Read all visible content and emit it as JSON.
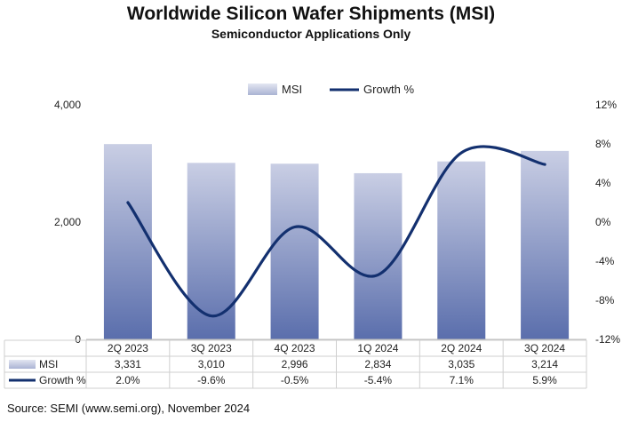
{
  "title": "Worldwide Silicon Wafer Shipments (MSI)",
  "subtitle": "Semiconductor Applications Only",
  "source": "Source: SEMI (www.semi.org), November 2024",
  "chart_data": {
    "type": "bar",
    "categories": [
      "2Q 2023",
      "3Q 2023",
      "4Q 2023",
      "1Q 2024",
      "2Q 2024",
      "3Q 2024"
    ],
    "series": [
      {
        "name": "MSI",
        "type": "bar",
        "axis": "left",
        "values": [
          3331,
          3010,
          2996,
          2834,
          3035,
          3214
        ],
        "labels": [
          "3,331",
          "3,010",
          "2,996",
          "2,834",
          "3,035",
          "3,214"
        ]
      },
      {
        "name": "Growth %",
        "type": "line",
        "axis": "right",
        "values": [
          2.0,
          -9.6,
          -0.5,
          -5.4,
          7.1,
          5.9
        ],
        "labels": [
          "2.0%",
          "-9.6%",
          "-0.5%",
          "-5.4%",
          "7.1%",
          "5.9%"
        ]
      }
    ],
    "y_left": {
      "ylim": [
        0,
        4000
      ],
      "ticks": [
        0,
        2000,
        4000
      ],
      "tick_labels": [
        "0",
        "2,000",
        "4,000"
      ]
    },
    "y_right": {
      "ylim": [
        -12,
        12
      ],
      "ticks": [
        -12,
        -8,
        -4,
        0,
        4,
        8,
        12
      ],
      "tick_labels": [
        "-12%",
        "-8%",
        "-4%",
        "0%",
        "4%",
        "8%",
        "12%"
      ]
    },
    "legend_position": "top-center",
    "grid": false,
    "data_table": true,
    "colors": {
      "bar_top": "#c9cee4",
      "bar_bottom": "#5a6eac",
      "line": "#13306f"
    }
  }
}
